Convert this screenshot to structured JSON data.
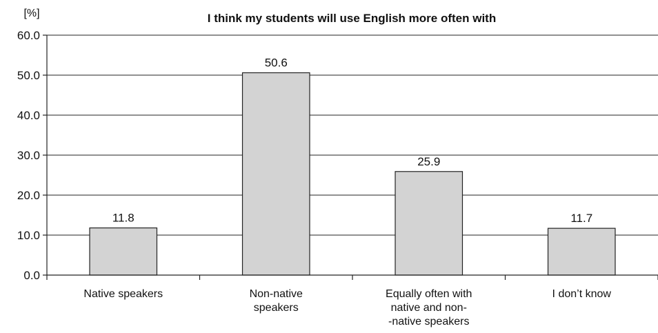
{
  "chart_data": {
    "type": "bar",
    "title": "I think my students will use English more often with",
    "ylabel": "[%]",
    "xlabel": "",
    "categories": [
      [
        "Native speakers"
      ],
      [
        "Non-native",
        "speakers"
      ],
      [
        "Equally often with",
        "native and non-",
        "-native speakers"
      ],
      [
        "I don’t know"
      ]
    ],
    "values": [
      11.8,
      50.6,
      25.9,
      11.7
    ],
    "value_labels": [
      "11.8",
      "50.6",
      "25.9",
      "11.7"
    ],
    "ylim": [
      0,
      60
    ],
    "yticks": [
      0,
      10,
      20,
      30,
      40,
      50,
      60
    ],
    "ytick_labels": [
      "0.0",
      "10.0",
      "20.0",
      "30.0",
      "40.0",
      "50.0",
      "60.0"
    ],
    "grid": true,
    "legend": "none",
    "colors": {
      "bar": "#d3d3d3",
      "edge": "#222222"
    }
  }
}
